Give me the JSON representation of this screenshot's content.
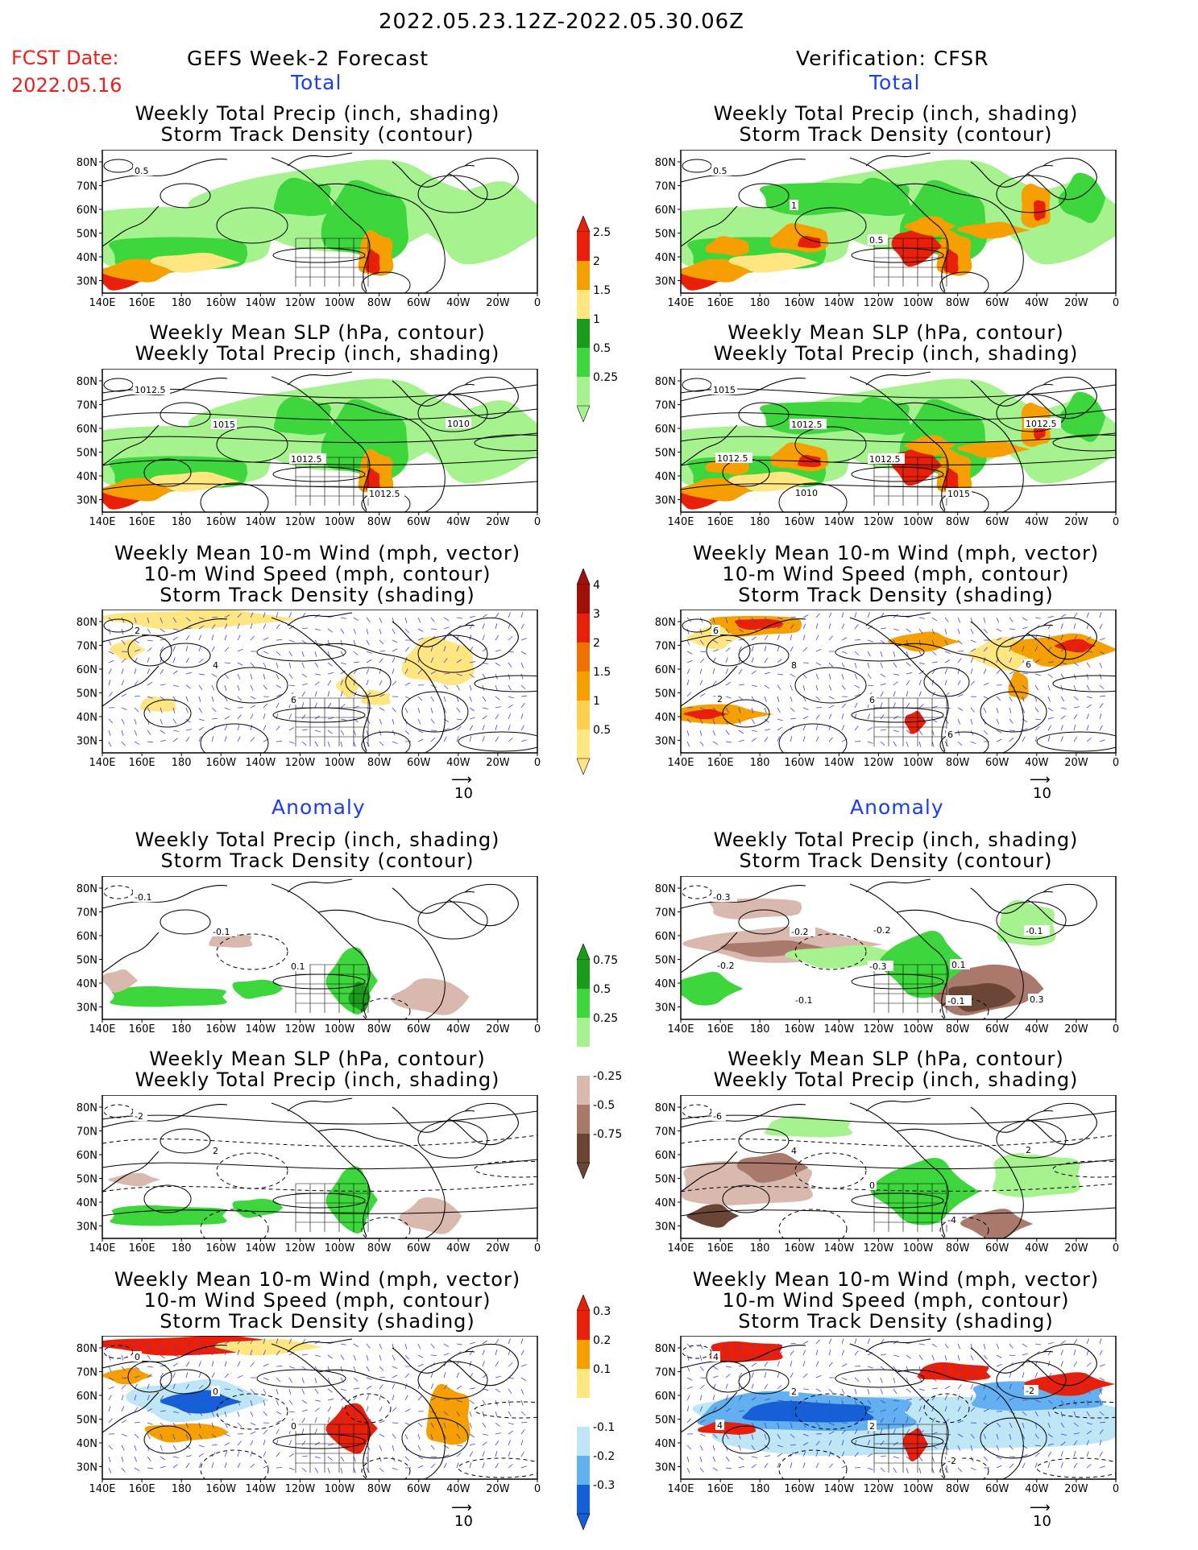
{
  "header": {
    "period": "2022.05.23.12Z-2022.05.30.06Z",
    "fcst_label": "FCST Date:",
    "fcst_date": "2022.05.16",
    "left_title": "GEFS Week-2 Forecast",
    "right_title": "Verification: CFSR",
    "total_label": "Total",
    "anomaly_label": "Anomaly"
  },
  "axis": {
    "lat_ticks": [
      "80N",
      "70N",
      "60N",
      "50N",
      "40N",
      "30N"
    ],
    "lon_ticks": [
      "140E",
      "160E",
      "180",
      "160W",
      "140W",
      "120W",
      "100W",
      "80W",
      "60W",
      "40W",
      "20W",
      "0"
    ]
  },
  "panels": {
    "precip_storm": [
      "Weekly Total Precip (inch, shading)",
      "Storm Track Density (contour)"
    ],
    "slp_precip": [
      "Weekly Mean SLP (hPa, contour)",
      "Weekly Total Precip (inch, shading)"
    ],
    "wind_storm": [
      "Weekly Mean 10-m Wind (mph, vector)",
      "10-m Wind Speed (mph, contour)",
      "Storm Track Density (shading)"
    ]
  },
  "vector_ref": "10",
  "colorbars": {
    "total_precip": [
      "0.25",
      "0.5",
      "1",
      "1.5",
      "2",
      "2.5"
    ],
    "total_storm": [
      "0.5",
      "1",
      "1.5",
      "2",
      "3",
      "4"
    ],
    "anom_precip": [
      "-0.75",
      "-0.5",
      "-0.25",
      "0.25",
      "0.5",
      "0.75"
    ],
    "anom_storm": [
      "-0.3",
      "-0.2",
      "-0.1",
      "0.1",
      "0.2",
      "0.3"
    ]
  },
  "contour_labels": {
    "r1_left": [
      "0.5"
    ],
    "r1_right": [
      "0.5",
      "1",
      "0.5"
    ],
    "r2_left": [
      "1012.5",
      "1015",
      "1012.5",
      "1012.5",
      "1010"
    ],
    "r2_right": [
      "1015",
      "1012.5",
      "1012.5",
      "1015",
      "1012.5",
      "1012.5",
      "1010"
    ],
    "r3_left": [
      "2",
      "4",
      "6"
    ],
    "r3_right": [
      "6",
      "8",
      "6",
      "6",
      "6",
      "2"
    ],
    "r4_left": [
      "-0.1",
      "-0.1",
      "0.1"
    ],
    "r4_right": [
      "-0.3",
      "-0.2",
      "-0.3",
      "-0.1",
      "-0.1",
      "-0.2",
      "-0.1",
      "-0.2",
      "0.1",
      "0.3"
    ],
    "r5_left": [
      "-2",
      "2"
    ],
    "r5_right": [
      "-6",
      "4",
      "0",
      "-4",
      "2"
    ],
    "r6_left": [
      "0",
      "0",
      "0"
    ],
    "r6_right": [
      "4",
      "2",
      "2",
      "-2",
      "-2",
      "4"
    ]
  },
  "colors": {
    "green_light": "#a6f28f",
    "green_mid": "#3dd63d",
    "green_dark": "#1a9c1a",
    "yellow": "#ffe680",
    "orange": "#f5a000",
    "red": "#e8200a",
    "darkred": "#a01008",
    "brown_light": "#d9b8ae",
    "brown_mid": "#a9796c",
    "brown_dark": "#6b4636",
    "blue_light": "#bfe6f5",
    "blue_mid": "#62b0f0",
    "blue_dark": "#1560d6",
    "vector": "#4040d8"
  },
  "chart_data": [
    {
      "type": "heatmap",
      "title": "Weekly Total Precip (inch, shading) / Storm Track Density (contour)",
      "column": "GEFS Week-2 Forecast",
      "section": "Total",
      "shading_levels": [
        0.25,
        0.5,
        1,
        1.5,
        2,
        2.5
      ]
    },
    {
      "type": "heatmap",
      "title": "Weekly Total Precip (inch, shading) / Storm Track Density (contour)",
      "column": "Verification: CFSR",
      "section": "Total",
      "shading_levels": [
        0.25,
        0.5,
        1,
        1.5,
        2,
        2.5
      ]
    },
    {
      "type": "heatmap",
      "title": "Weekly Mean SLP (hPa, contour) / Weekly Total Precip (inch, shading)",
      "column": "GEFS Week-2 Forecast",
      "section": "Total",
      "contour_labels": [
        1010,
        1012.5,
        1015
      ]
    },
    {
      "type": "heatmap",
      "title": "Weekly Mean SLP (hPa, contour) / Weekly Total Precip (inch, shading)",
      "column": "Verification: CFSR",
      "section": "Total",
      "contour_labels": [
        1010,
        1012.5,
        1015
      ]
    },
    {
      "type": "heatmap",
      "title": "Weekly Mean 10-m Wind (mph, vector) / 10-m Wind Speed (mph, contour) / Storm Track Density (shading)",
      "column": "GEFS Week-2 Forecast",
      "section": "Total",
      "shading_levels": [
        0.5,
        1,
        1.5,
        2,
        3,
        4
      ]
    },
    {
      "type": "heatmap",
      "title": "Weekly Mean 10-m Wind (mph, vector) / 10-m Wind Speed (mph, contour) / Storm Track Density (shading)",
      "column": "Verification: CFSR",
      "section": "Total",
      "shading_levels": [
        0.5,
        1,
        1.5,
        2,
        3,
        4
      ]
    },
    {
      "type": "heatmap",
      "title": "Weekly Total Precip (inch, shading) / Storm Track Density (contour)",
      "column": "GEFS Week-2 Forecast",
      "section": "Anomaly",
      "shading_levels": [
        -0.75,
        -0.5,
        -0.25,
        0.25,
        0.5,
        0.75
      ]
    },
    {
      "type": "heatmap",
      "title": "Weekly Total Precip (inch, shading) / Storm Track Density (contour)",
      "column": "Verification: CFSR",
      "section": "Anomaly",
      "shading_levels": [
        -0.75,
        -0.5,
        -0.25,
        0.25,
        0.5,
        0.75
      ]
    },
    {
      "type": "heatmap",
      "title": "Weekly Mean SLP (hPa, contour) / Weekly Total Precip (inch, shading)",
      "column": "GEFS Week-2 Forecast",
      "section": "Anomaly"
    },
    {
      "type": "heatmap",
      "title": "Weekly Mean SLP (hPa, contour) / Weekly Total Precip (inch, shading)",
      "column": "Verification: CFSR",
      "section": "Anomaly"
    },
    {
      "type": "heatmap",
      "title": "Weekly Mean 10-m Wind (mph, vector) / 10-m Wind Speed (mph, contour) / Storm Track Density (shading)",
      "column": "GEFS Week-2 Forecast",
      "section": "Anomaly",
      "shading_levels": [
        -0.3,
        -0.2,
        -0.1,
        0.1,
        0.2,
        0.3
      ]
    },
    {
      "type": "heatmap",
      "title": "Weekly Mean 10-m Wind (mph, vector) / 10-m Wind Speed (mph, contour) / Storm Track Density (shading)",
      "column": "Verification: CFSR",
      "section": "Anomaly",
      "shading_levels": [
        -0.3,
        -0.2,
        -0.1,
        0.1,
        0.2,
        0.3
      ]
    }
  ]
}
